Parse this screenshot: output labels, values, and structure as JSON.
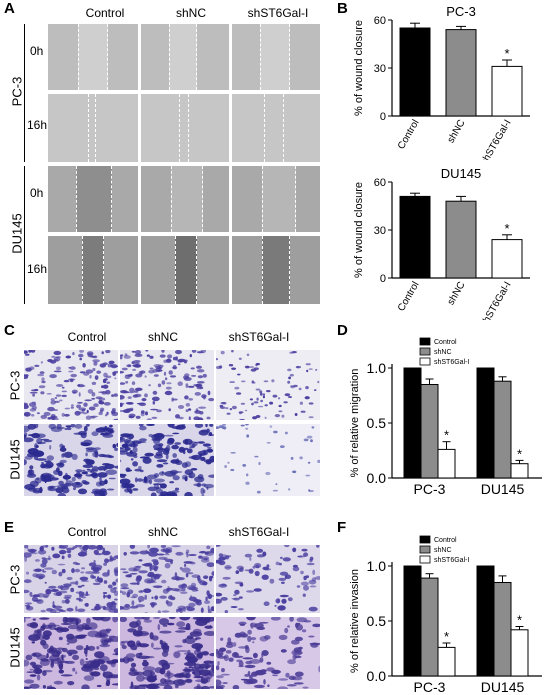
{
  "panel_letters": [
    "A",
    "B",
    "C",
    "D",
    "E",
    "F"
  ],
  "groups": [
    "Control",
    "shNC",
    "shST6Gal-I"
  ],
  "cell_lines": [
    "PC-3",
    "DU145"
  ],
  "timepoints": [
    "0h",
    "16h"
  ],
  "colors": {
    "control": "#000000",
    "shnc": "#8c8c8c",
    "shst6": "#ffffff",
    "crystal_violet": "#4a3fa0",
    "wound_gray": "#c4c4c4"
  },
  "chart_data": [
    {
      "type": "bar",
      "panel": "B",
      "title": "PC-3",
      "categories": [
        "Control",
        "shNC",
        "shST6Gal-I"
      ],
      "values": [
        55,
        54,
        31
      ],
      "errors": [
        3,
        2,
        4
      ],
      "significance": [
        "",
        "",
        "*"
      ],
      "ylabel": "% of wound closure",
      "ylim": [
        0,
        60
      ],
      "yticks": [
        0,
        30,
        60
      ]
    },
    {
      "type": "bar",
      "panel": "B",
      "title": "DU145",
      "categories": [
        "Control",
        "shNC",
        "shST6Gal-I"
      ],
      "values": [
        51,
        48,
        24
      ],
      "errors": [
        2,
        3,
        3
      ],
      "significance": [
        "",
        "",
        "*"
      ],
      "ylabel": "% of wound closure",
      "ylim": [
        0,
        60
      ],
      "yticks": [
        0,
        30,
        60
      ]
    },
    {
      "type": "bar",
      "panel": "D",
      "categories": [
        "PC-3",
        "DU145"
      ],
      "series": [
        {
          "name": "Control",
          "values": [
            1.0,
            1.0
          ],
          "errors": [
            0,
            0
          ]
        },
        {
          "name": "shNC",
          "values": [
            0.85,
            0.88
          ],
          "errors": [
            0.05,
            0.04
          ]
        },
        {
          "name": "shST6Gal-I",
          "values": [
            0.26,
            0.13
          ],
          "errors": [
            0.07,
            0.03
          ]
        }
      ],
      "significance": [
        "*",
        "*"
      ],
      "ylabel": "% of relative migration",
      "ylim": [
        0,
        1.0
      ],
      "yticks": [
        "0.0",
        "0.5",
        "1.0"
      ],
      "legend": "top-right"
    },
    {
      "type": "bar",
      "panel": "F",
      "categories": [
        "PC-3",
        "DU145"
      ],
      "series": [
        {
          "name": "Control",
          "values": [
            1.0,
            1.0
          ],
          "errors": [
            0,
            0
          ]
        },
        {
          "name": "shNC",
          "values": [
            0.89,
            0.85
          ],
          "errors": [
            0.04,
            0.06
          ]
        },
        {
          "name": "shST6Gal-I",
          "values": [
            0.26,
            0.42
          ],
          "errors": [
            0.04,
            0.03
          ]
        }
      ],
      "significance": [
        "*",
        "*"
      ],
      "ylabel": "% of relative invasion",
      "ylim": [
        0,
        1.0
      ],
      "yticks": [
        "0.0",
        "0.5",
        "1.0"
      ],
      "legend": "top-right"
    }
  ]
}
